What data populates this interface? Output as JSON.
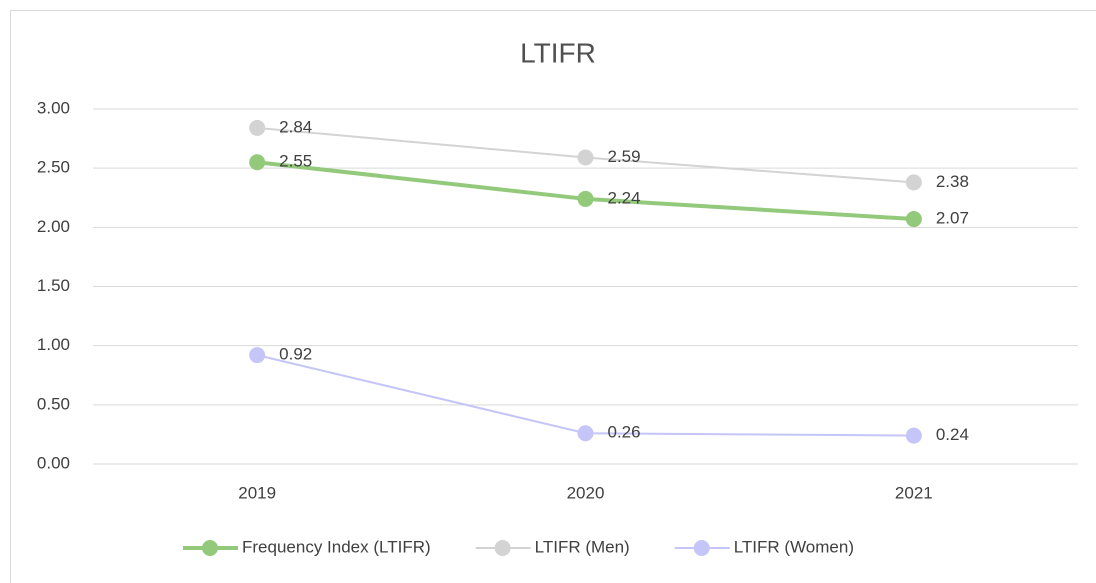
{
  "chart_data": {
    "type": "line",
    "title": "LTIFR",
    "categories": [
      "2019",
      "2020",
      "2021"
    ],
    "series": [
      {
        "name": "Frequency Index (LTIFR)",
        "color": "#92c97b",
        "values": [
          2.55,
          2.24,
          2.07
        ]
      },
      {
        "name": "LTIFR (Men)",
        "color": "#d3d3d3",
        "values": [
          2.84,
          2.59,
          2.38
        ]
      },
      {
        "name": "LTIFR (Women)",
        "color": "#c5c5f7",
        "values": [
          0.92,
          0.26,
          0.24
        ]
      }
    ],
    "ylim": [
      0,
      3
    ],
    "yticks": [
      {
        "value": 0,
        "label": "0.00"
      },
      {
        "value": 0.5,
        "label": "0.50"
      },
      {
        "value": 1,
        "label": "1.00"
      },
      {
        "value": 1.5,
        "label": "1.50"
      },
      {
        "value": 2,
        "label": "2.00"
      },
      {
        "value": 2.5,
        "label": "2.50"
      },
      {
        "value": 3,
        "label": "3.00"
      }
    ],
    "grid": true,
    "legend": "bottom"
  }
}
